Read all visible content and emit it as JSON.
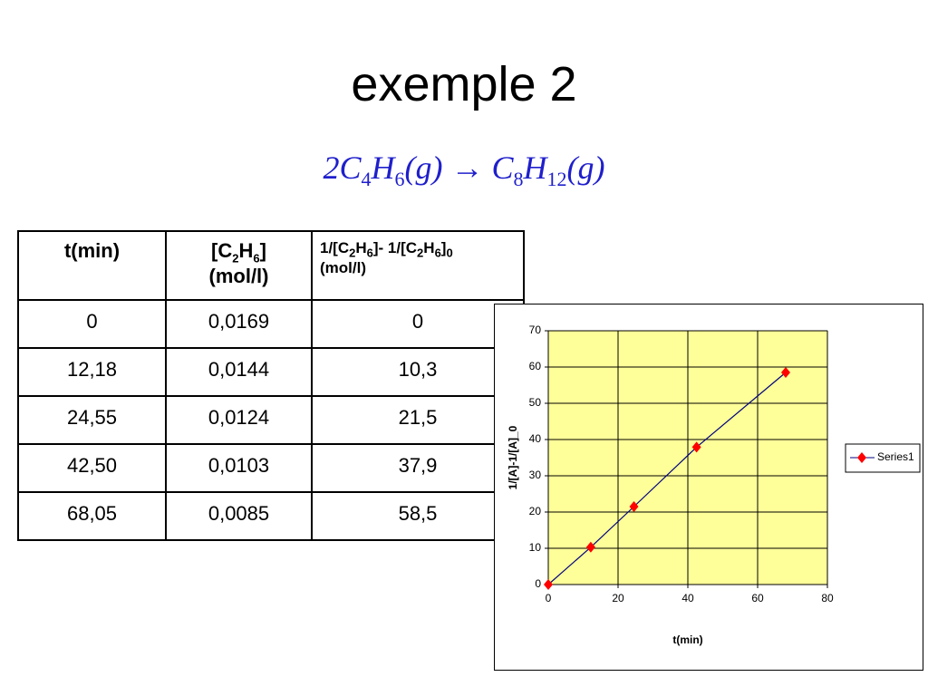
{
  "title": "exemple 2",
  "equation": [
    {
      "text": "2C"
    },
    {
      "sub": "4"
    },
    {
      "text": "H"
    },
    {
      "sub": "6"
    },
    {
      "text": "(g) → C"
    },
    {
      "sub": "8"
    },
    {
      "text": "H"
    },
    {
      "sub": "12"
    },
    {
      "text": "(g)"
    }
  ],
  "table": {
    "header": [
      [
        [
          {
            "text": "t(min)"
          }
        ]
      ],
      [
        [
          {
            "text": "[C"
          },
          {
            "sub": "2"
          },
          {
            "text": "H"
          },
          {
            "sub": "6"
          },
          {
            "text": "]"
          }
        ],
        [
          {
            "text": "(mol/l)"
          }
        ]
      ],
      [
        [
          {
            "text": "1/[C"
          },
          {
            "sub": "2"
          },
          {
            "text": "H"
          },
          {
            "sub": "6"
          },
          {
            "text": "]- 1/[C"
          },
          {
            "sub": "2"
          },
          {
            "text": "H"
          },
          {
            "sub": "6"
          },
          {
            "text": "]"
          },
          {
            "sub": "0"
          }
        ],
        [
          {
            "text": "(mol/l)"
          }
        ]
      ]
    ],
    "rows": [
      [
        "0",
        "0,0169",
        "0"
      ],
      [
        "12,18",
        "0,0144",
        "10,3"
      ],
      [
        "24,55",
        "0,0124",
        "21,5"
      ],
      [
        "42,50",
        "0,0103",
        "37,9"
      ],
      [
        "68,05",
        "0,0085",
        "58,5"
      ]
    ]
  },
  "chart_data": {
    "type": "line",
    "x": [
      0,
      12.18,
      24.55,
      42.5,
      68.05
    ],
    "series": [
      {
        "name": "Series1",
        "color": "#000080",
        "marker_color": "#ff0000",
        "values": [
          0,
          10.3,
          21.5,
          37.9,
          58.5
        ]
      }
    ],
    "xlabel": "t(min)",
    "ylabel": "1/[A]-1/[A]_0",
    "xlim": [
      0,
      80
    ],
    "xticks": [
      0,
      20,
      40,
      60,
      80
    ],
    "ylim": [
      0,
      70
    ],
    "yticks": [
      0,
      10,
      20,
      30,
      40,
      50,
      60,
      70
    ],
    "grid": true,
    "plot_background": "#ffff99",
    "legend": "right"
  }
}
